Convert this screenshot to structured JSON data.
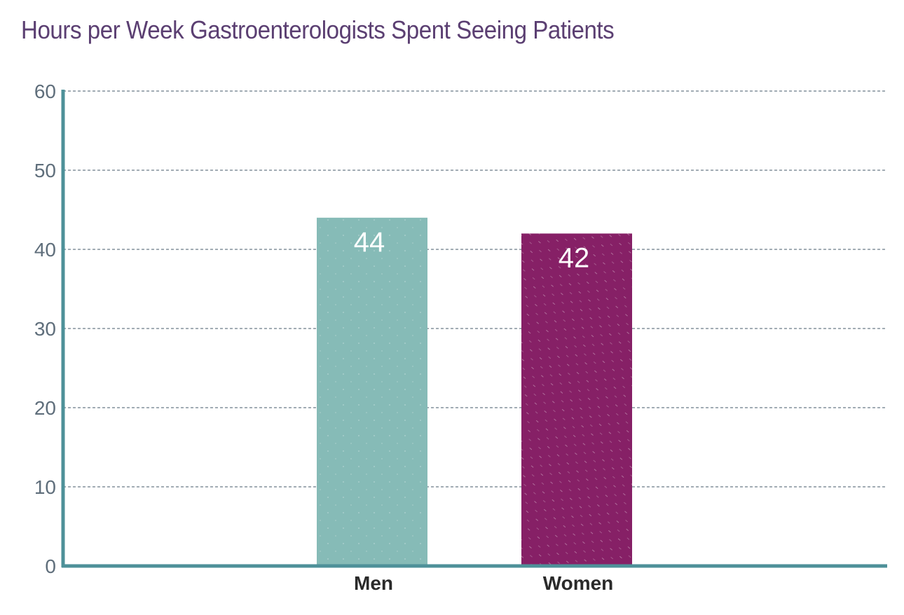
{
  "chart_data": {
    "type": "bar",
    "title": "Hours per Week Gastroenterologists Spent Seeing Patients",
    "categories": [
      "Men",
      "Women"
    ],
    "values": [
      44,
      42
    ],
    "data_labels": [
      "44",
      "42"
    ],
    "colors": [
      "#86bbb7",
      "#862066"
    ],
    "xlabel": "",
    "ylabel": "",
    "ylim": [
      0,
      60
    ],
    "yticks": [
      0,
      10,
      20,
      30,
      40,
      50,
      60
    ],
    "ytick_labels": [
      "0",
      "10",
      "20",
      "30",
      "40",
      "50",
      "60"
    ],
    "grid": true,
    "legend": "none",
    "axis_color": "#4e9199",
    "grid_color": "#6b7b86"
  }
}
